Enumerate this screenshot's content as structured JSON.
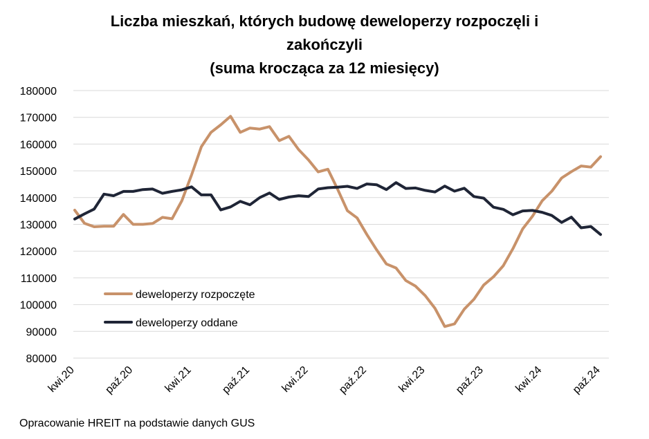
{
  "chart_data": {
    "type": "line",
    "title_lines": [
      "Liczba mieszkań, których budowę deweloperzy rozpoczęli i",
      "zakończyli",
      "(suma krocząca za 12 miesięcy)"
    ],
    "xlabel": "",
    "ylabel": "",
    "ylim": [
      80000,
      180000
    ],
    "yticks": [
      "180000",
      "170000",
      "160000",
      "150000",
      "140000",
      "130000",
      "120000",
      "110000",
      "100000",
      "90000",
      "80000"
    ],
    "x_tick_labels": [
      "kwi.20",
      "paź.20",
      "kwi.21",
      "paź.21",
      "kwi.22",
      "paź.22",
      "kwi.23",
      "paź.23",
      "kwi.24",
      "paź.24"
    ],
    "x_tick_months": [
      0,
      6,
      12,
      18,
      24,
      30,
      36,
      42,
      48,
      54
    ],
    "x_start": "kwi.20",
    "grid": true,
    "legend_position": "lower-left inside plot",
    "series": [
      {
        "name": "deweloperzy rozpoczęte",
        "color": "#c8926a",
        "values": [
          135300,
          130400,
          129100,
          129300,
          129300,
          133700,
          130000,
          130000,
          130300,
          132600,
          132100,
          138800,
          148500,
          159000,
          164400,
          167200,
          170400,
          164400,
          166000,
          165600,
          166500,
          161300,
          162900,
          157900,
          154100,
          149600,
          150600,
          143100,
          135100,
          132400,
          126200,
          120500,
          115200,
          113700,
          109000,
          106900,
          103300,
          98600,
          91800,
          92800,
          98300,
          102000,
          107300,
          110400,
          114500,
          120900,
          128300,
          133000,
          138800,
          142400,
          147300,
          149700,
          151800,
          151400,
          155300
        ]
      },
      {
        "name": "deweloperzy oddane",
        "color": "#1f2536",
        "values": [
          132000,
          133900,
          135700,
          141300,
          140700,
          142300,
          142300,
          143000,
          143200,
          141600,
          142300,
          142900,
          144000,
          141000,
          141000,
          135400,
          136500,
          138600,
          137300,
          140000,
          141700,
          139300,
          140200,
          140700,
          140400,
          143200,
          143700,
          143900,
          144200,
          143400,
          145100,
          144800,
          143000,
          145600,
          143400,
          143600,
          142700,
          142100,
          144300,
          142400,
          143500,
          140400,
          139800,
          136400,
          135600,
          133600,
          135000,
          135200,
          134500,
          133300,
          130700,
          132700,
          128700,
          129200,
          126200
        ]
      }
    ]
  },
  "source": "Opracowanie HREIT na podstawie danych GUS"
}
